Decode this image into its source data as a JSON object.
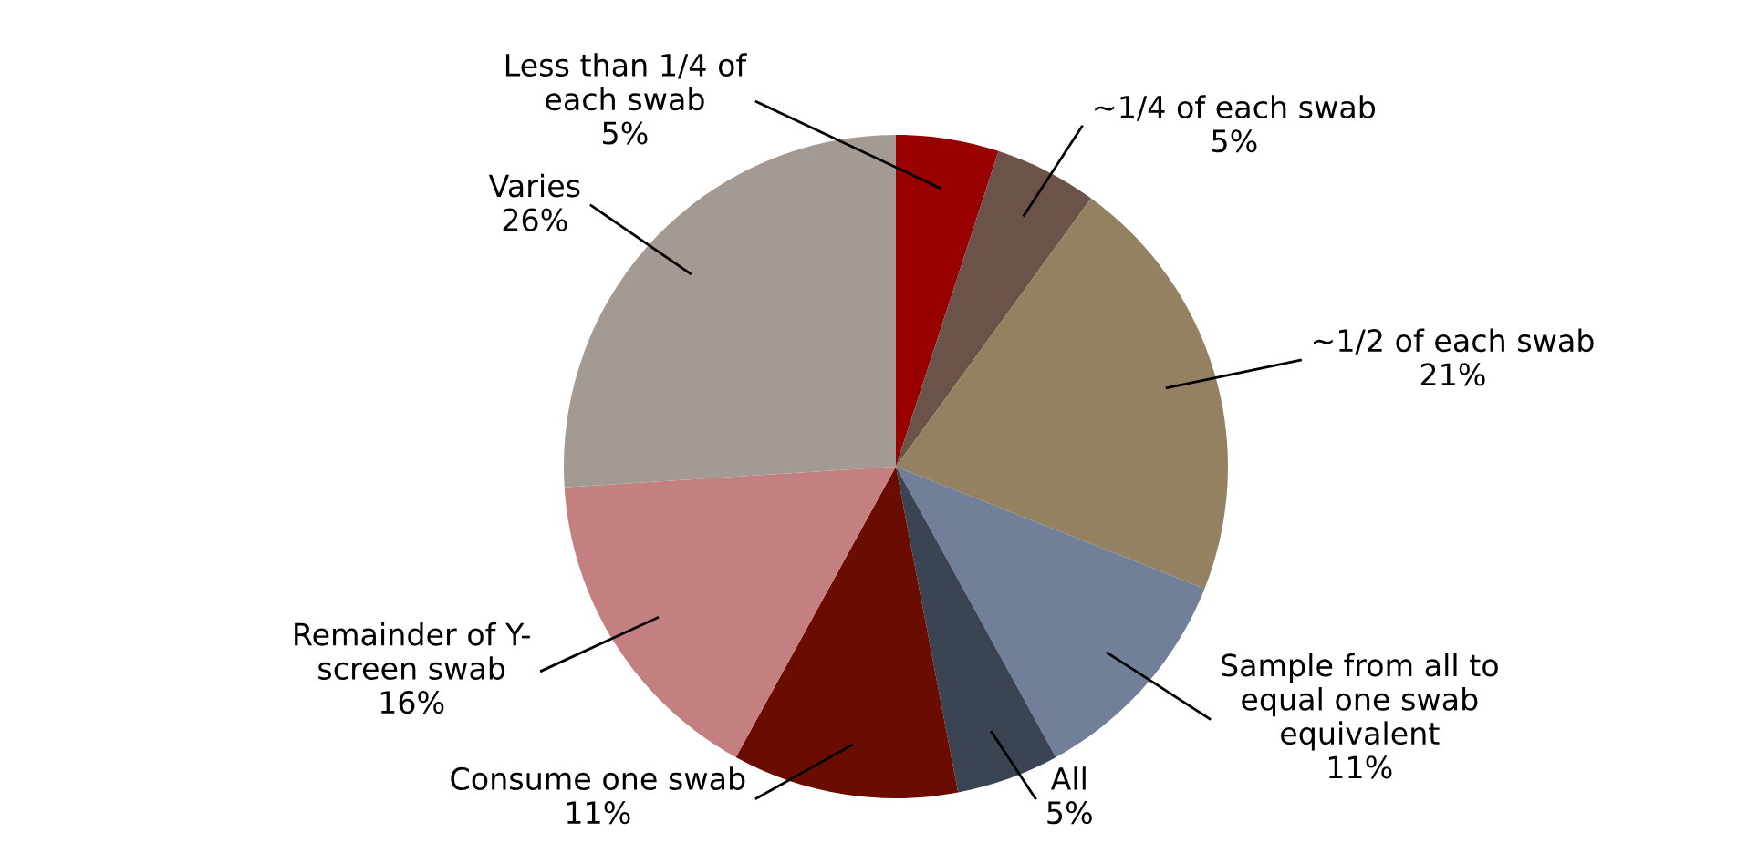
{
  "chart_data": {
    "type": "pie",
    "categories": [
      "Less than 1/4 of\neach swab",
      "~1/4 of each swab",
      "~1/2 of each swab",
      "Sample from all to\nequal one swab\nequivalent",
      "All",
      "Consume one swab",
      "Remainder of Y-\nscreen swab",
      "Varies"
    ],
    "values": [
      5,
      5,
      21,
      11,
      5,
      11,
      16,
      26
    ],
    "value_labels": [
      "5%",
      "5%",
      "21%",
      "11%",
      "5%",
      "11%",
      "16%",
      "26%"
    ],
    "colors": [
      "#990000",
      "#6b5349",
      "#948162",
      "#717f99",
      "#3b4452",
      "#6b0c00",
      "#c48080",
      "#a39a94"
    ],
    "legend": false
  }
}
